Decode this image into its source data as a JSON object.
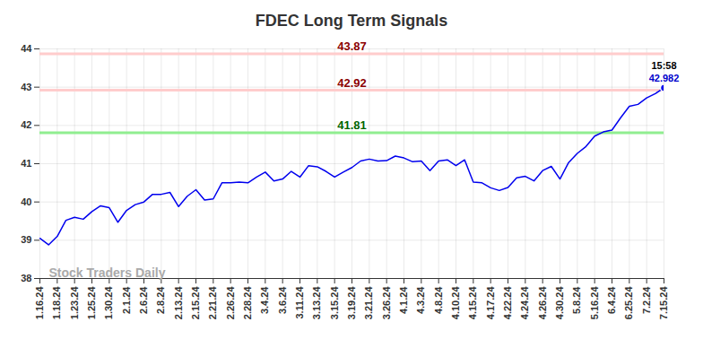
{
  "chart_data": {
    "type": "line",
    "title": "FDEC Long Term Signals",
    "categories": [
      "1.16.24",
      null,
      "1.18.24",
      null,
      "1.23.24",
      null,
      "1.25.24",
      null,
      "1.30.24",
      null,
      "2.1.24",
      null,
      "2.6.24",
      null,
      "2.8.24",
      null,
      "2.13.24",
      null,
      "2.15.24",
      null,
      "2.21.24",
      null,
      "2.26.24",
      null,
      "2.28.24",
      null,
      "3.4.24",
      null,
      "3.6.24",
      null,
      "3.11.24",
      null,
      "3.13.24",
      null,
      "3.15.24",
      null,
      "3.19.24",
      null,
      "3.21.24",
      null,
      "3.26.24",
      null,
      "4.1.24",
      null,
      "4.3.24",
      null,
      "4.8.24",
      null,
      "4.10.24",
      null,
      "4.15.24",
      null,
      "4.17.24",
      null,
      "4.22.24",
      null,
      "4.24.24",
      null,
      "4.26.24",
      null,
      "4.30.24",
      null,
      "5.8.24",
      null,
      "5.16.24",
      null,
      "6.4.24",
      null,
      "6.25.24",
      null,
      "7.2.24",
      null,
      "7.15.24"
    ],
    "values": [
      39.05,
      38.88,
      39.1,
      39.52,
      39.6,
      39.55,
      39.75,
      39.9,
      39.85,
      39.47,
      39.78,
      39.93,
      40.0,
      40.2,
      40.2,
      40.25,
      39.88,
      40.15,
      40.32,
      40.05,
      40.08,
      40.5,
      40.5,
      40.52,
      40.5,
      40.65,
      40.78,
      40.55,
      40.6,
      40.8,
      40.65,
      40.95,
      40.92,
      40.8,
      40.65,
      40.78,
      40.9,
      41.07,
      41.12,
      41.07,
      41.08,
      41.2,
      41.15,
      41.05,
      41.07,
      40.82,
      41.07,
      41.1,
      40.95,
      41.1,
      40.52,
      40.5,
      40.37,
      40.3,
      40.38,
      40.63,
      40.67,
      40.55,
      40.82,
      40.93,
      40.6,
      41.03,
      41.27,
      41.45,
      41.72,
      41.83,
      41.88,
      42.2,
      42.5,
      42.55,
      42.72,
      42.83,
      42.982
    ],
    "color": "#0000ee",
    "ylim": [
      38,
      44
    ],
    "yticks": [
      38,
      39,
      40,
      41,
      42,
      43,
      44
    ],
    "grid": true,
    "reference_lines": [
      {
        "value": 43.87,
        "color": "#ffcccc",
        "label_color": "#8b0000"
      },
      {
        "value": 42.92,
        "color": "#ffcccc",
        "label_color": "#8b0000"
      },
      {
        "value": 41.81,
        "color": "#90ee90",
        "label_color": "#006400"
      }
    ],
    "last_point_label": {
      "time": "15:58",
      "value": 42.982,
      "color": "#0000cc"
    },
    "watermark": "Stock Traders Daily"
  }
}
